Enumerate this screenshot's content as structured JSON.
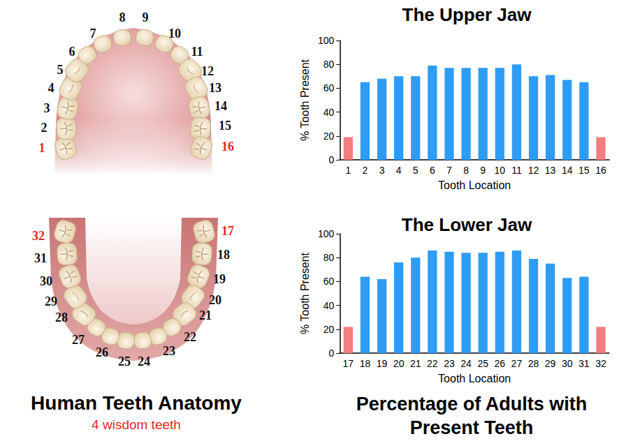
{
  "captions": {
    "left_title": "Human Teeth Anatomy",
    "left_subtitle": "4 wisdom teeth",
    "right_title": "Percentage of Adults with Present Teeth"
  },
  "diagram": {
    "upper_teeth": [
      1,
      2,
      3,
      4,
      5,
      6,
      7,
      8,
      9,
      10,
      11,
      12,
      13,
      14,
      15,
      16
    ],
    "lower_teeth": [
      17,
      18,
      19,
      20,
      21,
      22,
      23,
      24,
      25,
      26,
      27,
      28,
      29,
      30,
      31,
      32
    ],
    "wisdom_teeth": [
      1,
      16,
      17,
      32
    ],
    "wisdom_color": "#e8281f"
  },
  "chart_data": [
    {
      "type": "bar",
      "title": "The Upper Jaw",
      "x_label": "Tooth Location",
      "y_label": "% Tooth Present",
      "categories": [
        "1",
        "2",
        "3",
        "4",
        "5",
        "6",
        "7",
        "8",
        "9",
        "10",
        "11",
        "12",
        "13",
        "14",
        "15",
        "16"
      ],
      "values": [
        19,
        65,
        68,
        70,
        70,
        79,
        77,
        77,
        77,
        77,
        80,
        70,
        71,
        67,
        65,
        19
      ],
      "colors": [
        "#f47c7c",
        "#2f9cf4",
        "#2f9cf4",
        "#2f9cf4",
        "#2f9cf4",
        "#2f9cf4",
        "#2f9cf4",
        "#2f9cf4",
        "#2f9cf4",
        "#2f9cf4",
        "#2f9cf4",
        "#2f9cf4",
        "#2f9cf4",
        "#2f9cf4",
        "#2f9cf4",
        "#f47c7c"
      ],
      "ylim": [
        0,
        100
      ],
      "yticks": [
        0,
        20,
        40,
        60,
        80,
        100
      ],
      "grid": false
    },
    {
      "type": "bar",
      "title": "The Lower Jaw",
      "x_label": "Tooth Location",
      "y_label": "% Tooth Present",
      "categories": [
        "17",
        "18",
        "19",
        "20",
        "21",
        "22",
        "23",
        "24",
        "25",
        "26",
        "27",
        "28",
        "29",
        "30",
        "31",
        "32"
      ],
      "values": [
        22,
        64,
        62,
        76,
        80,
        86,
        85,
        84,
        84,
        85,
        86,
        79,
        75,
        63,
        64,
        22
      ],
      "colors": [
        "#f47c7c",
        "#2f9cf4",
        "#2f9cf4",
        "#2f9cf4",
        "#2f9cf4",
        "#2f9cf4",
        "#2f9cf4",
        "#2f9cf4",
        "#2f9cf4",
        "#2f9cf4",
        "#2f9cf4",
        "#2f9cf4",
        "#2f9cf4",
        "#2f9cf4",
        "#2f9cf4",
        "#f47c7c"
      ],
      "ylim": [
        0,
        100
      ],
      "yticks": [
        0,
        20,
        40,
        60,
        80,
        100
      ],
      "grid": false
    }
  ]
}
